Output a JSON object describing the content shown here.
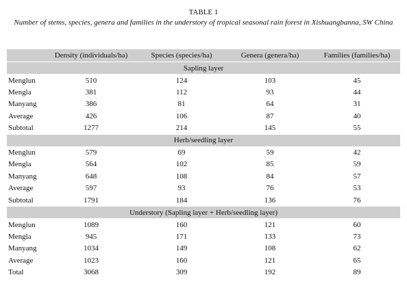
{
  "title": "TABLE 1",
  "caption": "Number of stems, species, genera and families in the understory of tropical seasonal rain forest in Xishuangbanna, SW China",
  "table": {
    "header": [
      "Density (individuals/ha)",
      "Species (species/ha)",
      "Genera (genera/ha)",
      "Families (families/ha)"
    ],
    "sections": [
      {
        "title": "Sapling layer",
        "rows": [
          [
            "Menglun",
            510,
            124,
            103,
            45
          ],
          [
            "Mengla",
            381,
            112,
            93,
            44
          ],
          [
            "Manyang",
            386,
            81,
            64,
            31
          ],
          [
            "Average",
            426,
            106,
            87,
            40
          ],
          [
            "Subtotal",
            1277,
            214,
            145,
            55
          ]
        ]
      },
      {
        "title": "Herb/seedling layer",
        "rows": [
          [
            "Menglun",
            579,
            69,
            59,
            42
          ],
          [
            "Mengla",
            564,
            102,
            85,
            59
          ],
          [
            "Manyang",
            648,
            108,
            84,
            57
          ],
          [
            "Average",
            597,
            93,
            76,
            53
          ],
          [
            "Subtotal",
            1791,
            184,
            136,
            76
          ]
        ]
      },
      {
        "title": "Understory (Sapling layer + Herb/seedling layer)",
        "rows": [
          [
            "Menglun",
            1089,
            160,
            121,
            60
          ],
          [
            "Mengla",
            945,
            171,
            133,
            73
          ],
          [
            "Manyang",
            1034,
            149,
            108,
            62
          ],
          [
            "Average",
            1023,
            160,
            121,
            65
          ],
          [
            "Total",
            3068,
            309,
            192,
            89
          ]
        ]
      }
    ]
  }
}
